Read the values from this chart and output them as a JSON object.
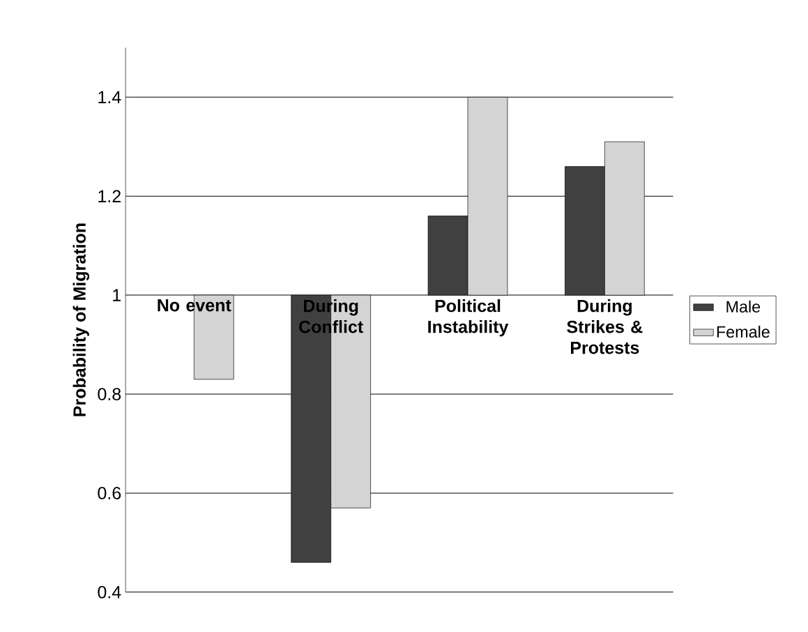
{
  "chart_data": {
    "type": "bar",
    "ylabel": "Probability of Migration",
    "categories": [
      "No event",
      "During Conflict",
      "Political Instability",
      "During Strikes & Protests"
    ],
    "series": [
      {
        "name": "Male",
        "color": "#404040",
        "base": [
          null,
          1,
          1,
          1
        ],
        "values": [
          null,
          -0.54,
          0.16,
          0.26
        ]
      },
      {
        "name": "Female",
        "color": "#d4d4d4",
        "base": [
          1,
          1,
          1,
          1
        ],
        "values": [
          -0.17,
          -0.43,
          0.4,
          0.31
        ]
      }
    ],
    "ylim": [
      0.4,
      1.5
    ],
    "yticks": [
      0.4,
      0.6,
      0.8,
      1,
      1.2,
      1.4
    ],
    "grid": "y",
    "legend": "right"
  }
}
